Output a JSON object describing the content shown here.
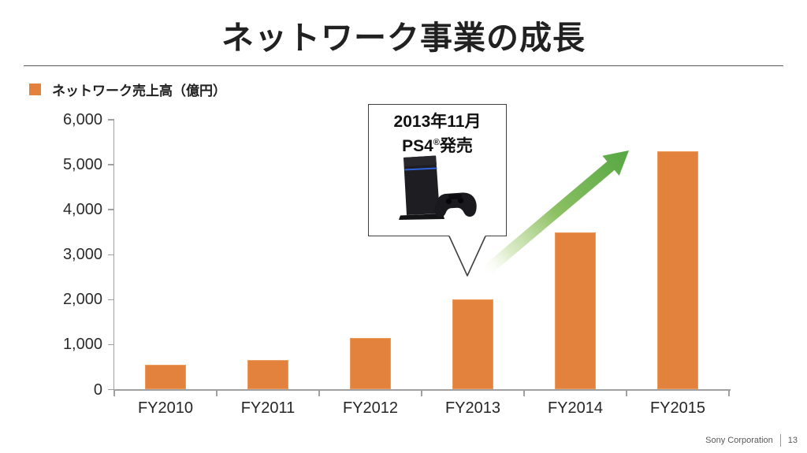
{
  "title": "ネットワーク事業の成長",
  "legend": {
    "label": "ネットワーク売上高（億円）"
  },
  "callout": {
    "date": "2013年11月",
    "product": "PS4",
    "reg_mark": "®",
    "release_word": "発売"
  },
  "footer": {
    "company": "Sony Corporation",
    "page_number": "13"
  },
  "chart_data": {
    "type": "bar",
    "title": "ネットワーク事業の成長",
    "series_name": "ネットワーク売上高（億円）",
    "unit": "億円",
    "categories": [
      "FY2010",
      "FY2011",
      "FY2012",
      "FY2013",
      "FY2014",
      "FY2015"
    ],
    "values": [
      550,
      650,
      1150,
      2000,
      3500,
      5300
    ],
    "ylim": [
      0,
      6000
    ],
    "yticks": [
      {
        "label": "0",
        "value": 0
      },
      {
        "label": "1,000",
        "value": 1000
      },
      {
        "label": "2,000",
        "value": 2000
      },
      {
        "label": "3,000",
        "value": 3000
      },
      {
        "label": "4,000",
        "value": 4000
      },
      {
        "label": "5,000",
        "value": 5000
      },
      {
        "label": "6,000",
        "value": 6000
      }
    ],
    "grid": false,
    "legend_position": "top-left",
    "bar_color": "#E2823C",
    "axis_color": "#A0A0A0",
    "annotation": {
      "text": "2013年11月 PS4®発売",
      "attached_to": "FY2013"
    },
    "trend_arrow": {
      "from_category": "FY2013",
      "to_category": "FY2015",
      "gradient": [
        {
          "offset": "0%",
          "color": "#ffffff",
          "opacity": 0
        },
        {
          "offset": "18%",
          "color": "#d7e9c0",
          "opacity": 0.85
        },
        {
          "offset": "50%",
          "color": "#8cc063",
          "opacity": 1
        },
        {
          "offset": "100%",
          "color": "#55a743",
          "opacity": 1
        }
      ]
    }
  }
}
